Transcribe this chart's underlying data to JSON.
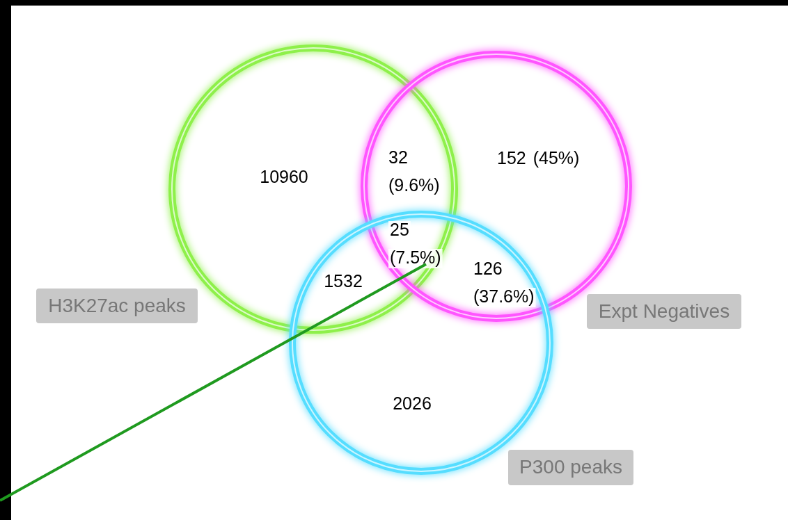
{
  "chart_data": {
    "type": "other",
    "categories": [
      null,
      null,
      null,
      null,
      null,
      null,
      null
    ],
    "values": [
      10960,
      32,
      152,
      25,
      1532,
      126,
      2026
    ],
    "data_labels": true,
    "annotations": [
      "H3K27ac peaks",
      "Expt Negatives",
      "P300 peaks",
      "(9.6%)",
      "(45%)",
      "(7.5%)",
      "(37.6%)"
    ]
  }
}
